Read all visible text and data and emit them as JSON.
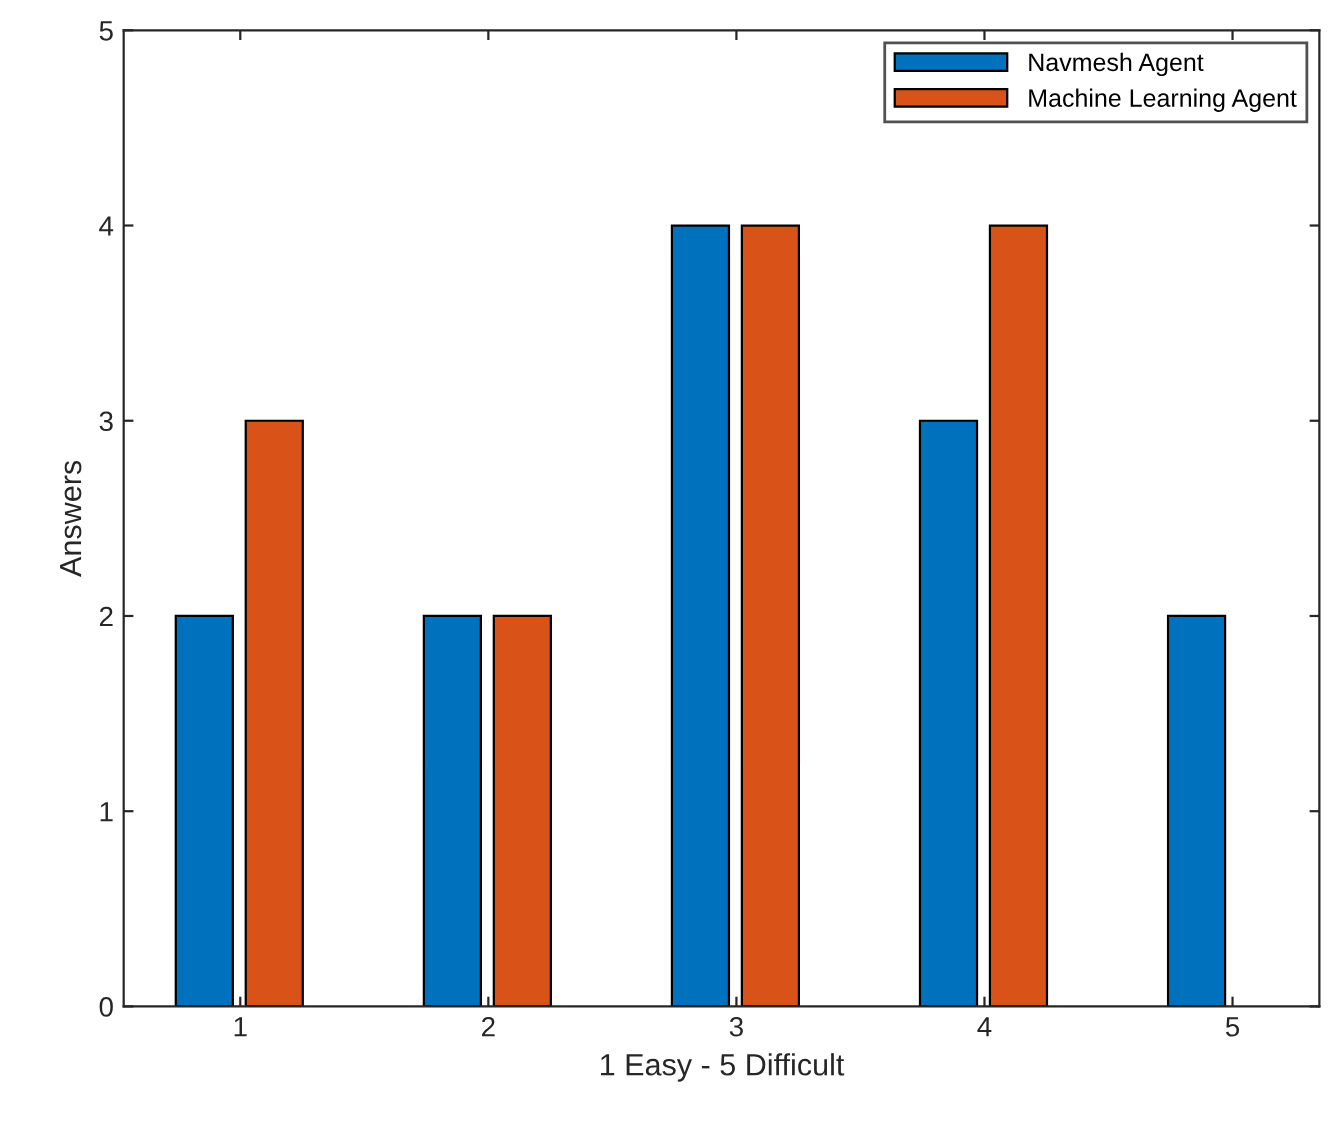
{
  "chart_data": {
    "type": "bar",
    "xlabel": "1 Easy - 5 Difficult",
    "ylabel": "Answers",
    "categories": [
      "1",
      "2",
      "3",
      "4",
      "5"
    ],
    "series": [
      {
        "name": "Navmesh Agent",
        "color": "#0072bd",
        "values": [
          2,
          2,
          4,
          3,
          2
        ]
      },
      {
        "name": "Machine Learning Agent",
        "color": "#d95319",
        "values": [
          3,
          2,
          4,
          4,
          null
        ]
      }
    ],
    "ylim": [
      0,
      5
    ],
    "yticks": [
      0,
      1,
      2,
      3,
      4,
      5
    ],
    "grid": false,
    "legend": "top right"
  }
}
